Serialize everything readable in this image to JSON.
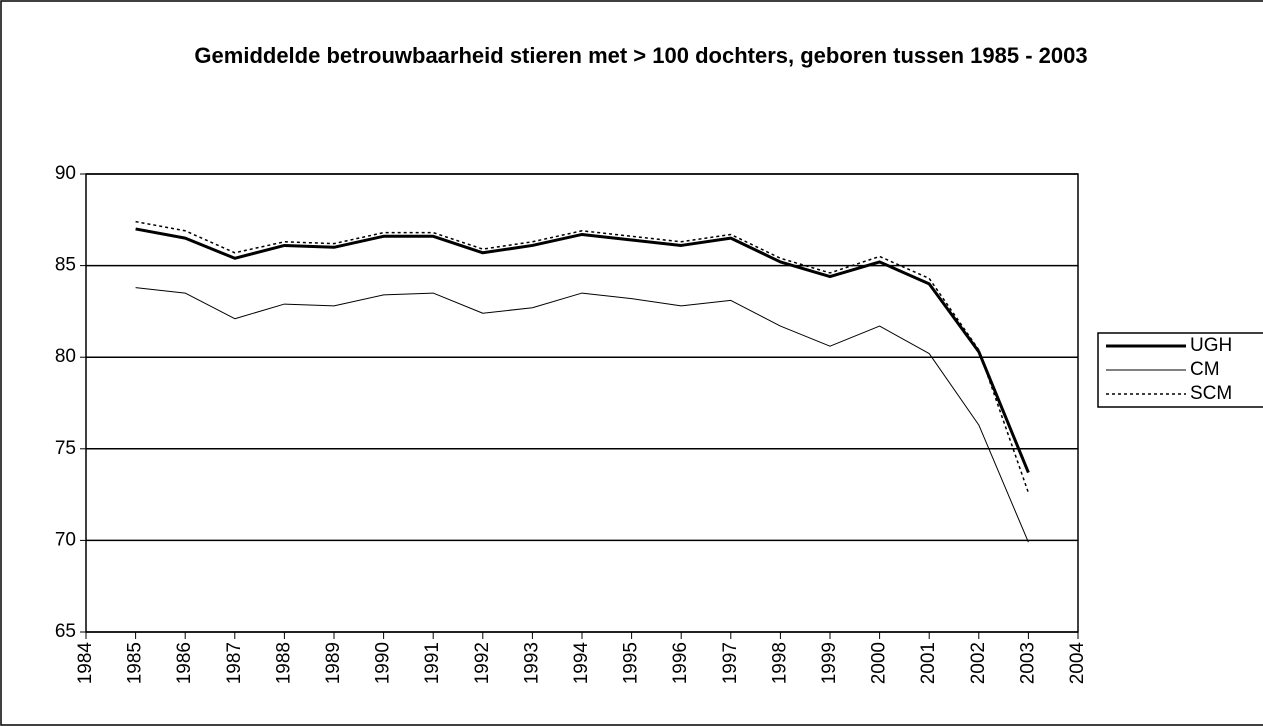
{
  "chart_data": {
    "type": "line",
    "title": "Gemiddelde betrouwbaarheid stieren met > 100 dochters, geboren tussen 1985 - 2003",
    "x": [
      1985,
      1986,
      1987,
      1988,
      1989,
      1990,
      1991,
      1992,
      1993,
      1994,
      1995,
      1996,
      1997,
      1998,
      1999,
      2000,
      2001,
      2002,
      2003
    ],
    "series": [
      {
        "name": "UGH",
        "color": "#000000",
        "line_width": 3,
        "line_style": "solid",
        "values": [
          87.0,
          86.5,
          85.4,
          86.1,
          86.0,
          86.6,
          86.6,
          85.7,
          86.1,
          86.7,
          86.4,
          86.1,
          86.5,
          85.2,
          84.4,
          85.2,
          84.0,
          80.3,
          73.7
        ]
      },
      {
        "name": "CM",
        "color": "#000000",
        "line_width": 1,
        "line_style": "solid",
        "values": [
          83.8,
          83.5,
          82.1,
          82.9,
          82.8,
          83.4,
          83.5,
          82.4,
          82.7,
          83.5,
          83.2,
          82.8,
          83.1,
          81.7,
          80.6,
          81.7,
          80.2,
          76.3,
          69.9
        ]
      },
      {
        "name": "SCM",
        "color": "#000000",
        "line_width": 1.5,
        "line_style": "dotted",
        "values": [
          87.4,
          86.9,
          85.7,
          86.3,
          86.2,
          86.8,
          86.8,
          85.9,
          86.3,
          86.9,
          86.6,
          86.3,
          86.7,
          85.4,
          84.6,
          85.5,
          84.3,
          80.4,
          72.6
        ]
      }
    ],
    "xlim": [
      1984,
      2004
    ],
    "xticks": [
      1984,
      1985,
      1986,
      1987,
      1988,
      1989,
      1990,
      1991,
      1992,
      1993,
      1994,
      1995,
      1996,
      1997,
      1998,
      1999,
      2000,
      2001,
      2002,
      2003,
      2004
    ],
    "ylim": [
      65,
      90
    ],
    "yticks": [
      65,
      70,
      75,
      80,
      85,
      90
    ],
    "grid": true,
    "legend": "right"
  }
}
